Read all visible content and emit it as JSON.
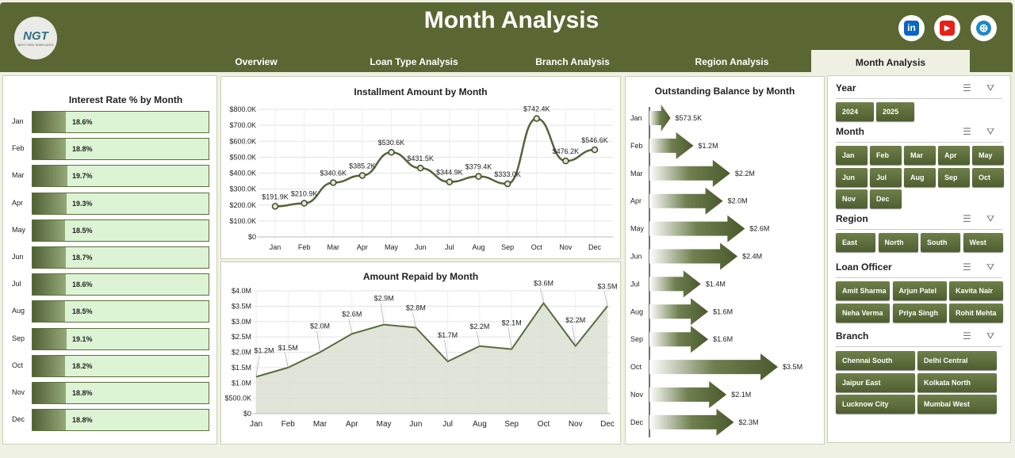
{
  "header": {
    "title": "Month Analysis",
    "logo": "NGT",
    "logo_sub": "NEXT GEN TEMPLATES",
    "tabs": [
      {
        "label": "Overview"
      },
      {
        "label": "Loan Type Analysis"
      },
      {
        "label": "Branch  Analysis"
      },
      {
        "label": "Region Analysis"
      },
      {
        "label": "Month Analysis",
        "active": true
      }
    ],
    "social": [
      {
        "icon": "linkedin-icon",
        "glyph": "in",
        "color": "#0a66c2"
      },
      {
        "icon": "youtube-icon",
        "glyph": "▶",
        "color": "#e62117"
      },
      {
        "icon": "globe-icon",
        "glyph": "⊕",
        "color": "#1e88c8"
      }
    ]
  },
  "months": [
    "Jan",
    "Feb",
    "Mar",
    "Apr",
    "May",
    "Jun",
    "Jul",
    "Aug",
    "Sep",
    "Oct",
    "Nov",
    "Dec"
  ],
  "chart_data": [
    {
      "type": "bar",
      "title": "Interest Rate % by Month",
      "categories": [
        "Jan",
        "Feb",
        "Mar",
        "Apr",
        "May",
        "Jun",
        "Jul",
        "Aug",
        "Sep",
        "Oct",
        "Nov",
        "Dec"
      ],
      "values": [
        18.6,
        18.8,
        19.7,
        19.3,
        18.5,
        18.7,
        18.6,
        18.5,
        19.1,
        18.2,
        18.8,
        18.8
      ],
      "labels": [
        "18.6%",
        "18.8%",
        "19.7%",
        "19.3%",
        "18.5%",
        "18.7%",
        "18.6%",
        "18.5%",
        "19.1%",
        "18.2%",
        "18.8%",
        "18.8%"
      ],
      "orientation": "horizontal",
      "xlim": [
        0,
        100
      ]
    },
    {
      "type": "line",
      "title": "Installment Amount by Month",
      "categories": [
        "Jan",
        "Feb",
        "Mar",
        "Apr",
        "May",
        "Jun",
        "Jul",
        "Aug",
        "Sep",
        "Oct",
        "Nov",
        "Dec"
      ],
      "values": [
        191.9,
        210.9,
        340.6,
        385.2,
        530.6,
        431.5,
        344.9,
        379.4,
        333.0,
        742.4,
        476.2,
        546.6
      ],
      "labels": [
        "$191.9K",
        "$210.9K",
        "$340.6K",
        "$385.2K",
        "$530.6K",
        "$431.5K",
        "$344.9K",
        "$379.4K",
        "$333.0K",
        "$742.4K",
        "$476.2K",
        "$546.6K"
      ],
      "ylim": [
        0,
        800
      ],
      "yticks": [
        "$0",
        "$100.0K",
        "$200.0K",
        "$300.0K",
        "$400.0K",
        "$500.0K",
        "$600.0K",
        "$700.0K",
        "$800.0K"
      ],
      "grid": true
    },
    {
      "type": "area",
      "title": "Amount Repaid by Month",
      "categories": [
        "Jan",
        "Feb",
        "Mar",
        "Apr",
        "May",
        "Jun",
        "Jul",
        "Aug",
        "Sep",
        "Oct",
        "Nov",
        "Dec"
      ],
      "values": [
        1.2,
        1.5,
        2.0,
        2.6,
        2.9,
        2.8,
        1.7,
        2.2,
        2.1,
        3.6,
        2.2,
        3.5
      ],
      "labels": [
        "$1.2M",
        "$1.5M",
        "$2.0M",
        "$2.6M",
        "$2.9M",
        "$2.8M",
        "$1.7M",
        "$2.2M",
        "$2.1M",
        "$3.6M",
        "$2.2M",
        "$3.5M"
      ],
      "ylim": [
        0,
        4
      ],
      "yticks": [
        "$0",
        "$500.0K",
        "$1.0M",
        "$1.5M",
        "$2.0M",
        "$2.5M",
        "$3.0M",
        "$3.5M",
        "$4.0M"
      ],
      "grid": true
    },
    {
      "type": "bar",
      "title": "Outstanding Balance by Month",
      "orientation": "horizontal",
      "categories": [
        "Jan",
        "Feb",
        "Mar",
        "Apr",
        "May",
        "Jun",
        "Jul",
        "Aug",
        "Sep",
        "Oct",
        "Nov",
        "Dec"
      ],
      "values": [
        0.5735,
        1.2,
        2.2,
        2.0,
        2.6,
        2.4,
        1.4,
        1.6,
        1.6,
        3.5,
        2.1,
        2.3
      ],
      "labels": [
        "$573.5K",
        "$1.2M",
        "$2.2M",
        "$2.0M",
        "$2.6M",
        "$2.4M",
        "$1.4M",
        "$1.6M",
        "$1.6M",
        "$3.5M",
        "$2.1M",
        "$2.3M"
      ]
    }
  ],
  "slicers": [
    {
      "title": "Year",
      "items": [
        "2024",
        "2025"
      ]
    },
    {
      "title": "Month",
      "items": [
        "Jan",
        "Feb",
        "Mar",
        "Apr",
        "May",
        "Jun",
        "Jul",
        "Aug",
        "Sep",
        "Oct",
        "Nov",
        "Dec"
      ]
    },
    {
      "title": "Region",
      "items": [
        "East",
        "North",
        "South",
        "West"
      ]
    },
    {
      "title": "Loan Officer",
      "items": [
        "Amit Sharma",
        "Arjun Patel",
        "Kavita Nair",
        "Neha Verma",
        "Priya Singh",
        "Rohit Mehta"
      ]
    },
    {
      "title": "Branch",
      "items": [
        "Chennai South",
        "Delhi Central",
        "Jaipur East",
        "Kolkata North",
        "Lucknow City",
        "Mumbai West"
      ]
    }
  ],
  "colors": {
    "header": "#5b6733",
    "accent": "#4e5e30",
    "bar_bg": "#dcf4d4"
  }
}
